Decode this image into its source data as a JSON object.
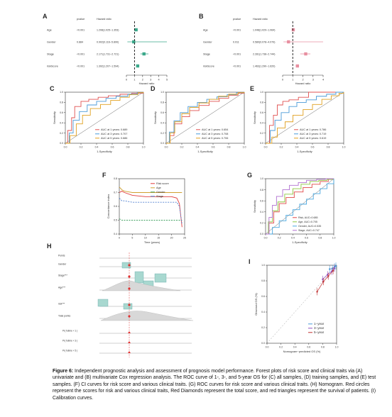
{
  "panels": {
    "a": {
      "label": "A",
      "header_pvalue": "pvalue",
      "header_hr": "Hazard ratio",
      "rows": [
        {
          "name": "Age",
          "pvalue": "<0.001",
          "hr": "1.208(1.025~1.353)",
          "est": 1.2,
          "lo": 1.03,
          "hi": 1.35
        },
        {
          "name": "Gender",
          "pvalue": "0.884",
          "hr": "0.902(0.116~5.890)",
          "est": 0.9,
          "lo": 0.12,
          "hi": 5.9
        },
        {
          "name": "Stage",
          "pvalue": "<0.001",
          "hr": "2.171(1.731~2.721)",
          "est": 2.17,
          "lo": 1.73,
          "hi": 2.72
        },
        {
          "name": "riskScore",
          "pvalue": "<0.001",
          "hr": "1.392(1.207~1.594)",
          "est": 1.39,
          "lo": 1.21,
          "hi": 1.59
        }
      ],
      "ticks": [
        "0",
        "1",
        "2",
        "3",
        "4",
        "5"
      ],
      "xlabel": "Hazard ratio",
      "color": "#3aa88a"
    },
    "b": {
      "label": "B",
      "header_pvalue": "pvalue",
      "header_hr": "Hazard ratio",
      "rows": [
        {
          "name": "Age",
          "pvalue": "<0.001",
          "hr": "1.048(1.029~1.064)",
          "est": 1.05,
          "lo": 1.03,
          "hi": 1.06
        },
        {
          "name": "Gender",
          "pvalue": "0.011",
          "hr": "0.580(0.078~4.079)",
          "est": 0.58,
          "lo": 0.08,
          "hi": 4.08
        },
        {
          "name": "Stage",
          "pvalue": "<0.001",
          "hr": "2.281(1.738~2.744)",
          "est": 2.28,
          "lo": 1.74,
          "hi": 2.74
        },
        {
          "name": "riskScore",
          "pvalue": "<0.001",
          "hr": "1.463(1.290~1.620)",
          "est": 1.46,
          "lo": 1.29,
          "hi": 1.62
        }
      ],
      "ticks": [
        "0",
        "1",
        "2",
        "3",
        "4"
      ],
      "xlabel": "Hazard ratio",
      "color": "#e88fa0"
    },
    "c": {
      "label": "C",
      "ylabel": "Sensitivity",
      "xlabel": "1-Specificity",
      "ticks": [
        "0.0",
        "0.2",
        "0.4",
        "0.6",
        "0.8",
        "1.0"
      ],
      "legend": [
        "AUC at 1 years: 0.689",
        "AUC at 3 years: 0.707",
        "AUC at 5 years: 0.686"
      ]
    },
    "d": {
      "label": "D",
      "ylabel": "Sensitivity",
      "xlabel": "1-Specificity",
      "ticks": [
        "0.0",
        "0.2",
        "0.4",
        "0.6",
        "0.8",
        "1.0"
      ],
      "legend": [
        "AUC at 1 years: 0.654",
        "AUC at 3 years: 0.708",
        "AUC at 5 years: 0.706"
      ]
    },
    "e": {
      "label": "E",
      "ylabel": "Sensitivity",
      "xlabel": "1-Specificity",
      "ticks": [
        "0.0",
        "0.2",
        "0.4",
        "0.6",
        "0.8",
        "1.0"
      ],
      "legend": [
        "AUC at 1 years: 0.786",
        "AUC at 3 years: 0.719",
        "AUC at 5 years: 0.619"
      ]
    },
    "f": {
      "label": "F",
      "ylabel": "Concordance index",
      "xlabel": "Time (years)",
      "yticks": [
        "0.4",
        "0.5",
        "0.6",
        "0.7",
        "0.8"
      ],
      "xticks": [
        "0",
        "5",
        "10",
        "15",
        "20",
        "25"
      ],
      "legend": [
        "Risk score",
        "Age",
        "Gender",
        "Stage"
      ]
    },
    "g": {
      "label": "G",
      "ylabel": "Sensitivity",
      "xlabel": "1-Specificity",
      "ticks": [
        "0.0",
        "0.2",
        "0.4",
        "0.6",
        "0.8",
        "1.0"
      ],
      "legend": [
        "Risk, AUC=0.685",
        "Age, AUC=0.705",
        "Gender, AUC=0.535",
        "Stage, AUC=0.747"
      ]
    },
    "h": {
      "label": "H",
      "rows": [
        "Points",
        "Gender",
        "Stage***",
        "Age***",
        "risk***",
        "Total points"
      ],
      "prob_rows": [
        "Pr( futime < 1 )",
        "Pr( futime < 3 )",
        "Pr( futime < 5 )"
      ]
    },
    "i": {
      "label": "I",
      "ylabel": "Observed OS (%)",
      "xlabel": "Nomogram−predicted OS (%)",
      "ticks": [
        "0.0",
        "0.2",
        "0.4",
        "0.6",
        "0.8",
        "1.0"
      ],
      "legend": [
        "1−year",
        "3−year",
        "5−year"
      ]
    }
  },
  "chart_data": [
    {
      "type": "scatter",
      "title": "",
      "xlabel": "Hazard ratio",
      "ylabel": "",
      "categories": [
        "Age",
        "Gender",
        "Stage",
        "riskScore"
      ],
      "values": [
        1.2,
        0.9,
        2.17,
        1.39
      ],
      "xlim": [
        0,
        5
      ]
    },
    {
      "type": "scatter",
      "title": "",
      "xlabel": "Hazard ratio",
      "ylabel": "",
      "categories": [
        "Age",
        "Gender",
        "Stage",
        "riskScore"
      ],
      "values": [
        1.05,
        0.58,
        2.28,
        1.46
      ],
      "xlim": [
        0,
        4
      ]
    },
    {
      "type": "line",
      "title": "",
      "xlabel": "1-Specificity",
      "ylabel": "Sensitivity",
      "xlim": [
        0,
        1
      ],
      "ylim": [
        0,
        1
      ],
      "series": [
        {
          "name": "AUC at 1 years: 0.689",
          "x": [
            0,
            0.03,
            0.08,
            0.12,
            0.2,
            0.3,
            0.42,
            0.55,
            0.7,
            0.85,
            1
          ],
          "y": [
            0,
            0.25,
            0.5,
            0.72,
            0.82,
            0.86,
            0.9,
            0.93,
            0.96,
            0.98,
            1
          ]
        },
        {
          "name": "AUC at 3 years: 0.707",
          "x": [
            0,
            0.05,
            0.1,
            0.18,
            0.28,
            0.4,
            0.52,
            0.65,
            0.8,
            0.92,
            1
          ],
          "y": [
            0,
            0.2,
            0.45,
            0.62,
            0.75,
            0.82,
            0.88,
            0.92,
            0.96,
            0.99,
            1
          ]
        },
        {
          "name": "AUC at 5 years: 0.686",
          "x": [
            0,
            0.06,
            0.14,
            0.22,
            0.32,
            0.45,
            0.58,
            0.7,
            0.82,
            0.93,
            1
          ],
          "y": [
            0,
            0.15,
            0.38,
            0.55,
            0.68,
            0.76,
            0.84,
            0.9,
            0.95,
            0.99,
            1
          ]
        }
      ]
    },
    {
      "type": "line",
      "title": "",
      "xlabel": "1-Specificity",
      "ylabel": "Sensitivity",
      "xlim": [
        0,
        1
      ],
      "ylim": [
        0,
        1
      ],
      "series": [
        {
          "name": "AUC at 1 years: 0.654",
          "x": [
            0,
            0.05,
            0.1,
            0.2,
            0.3,
            0.42,
            0.55,
            0.68,
            0.8,
            0.92,
            1
          ],
          "y": [
            0,
            0.15,
            0.38,
            0.52,
            0.64,
            0.74,
            0.82,
            0.88,
            0.94,
            0.98,
            1
          ]
        },
        {
          "name": "AUC at 3 years: 0.708",
          "x": [
            0,
            0.04,
            0.1,
            0.18,
            0.28,
            0.4,
            0.52,
            0.65,
            0.78,
            0.9,
            1
          ],
          "y": [
            0,
            0.22,
            0.44,
            0.6,
            0.72,
            0.8,
            0.86,
            0.91,
            0.95,
            0.99,
            1
          ]
        },
        {
          "name": "AUC at 5 years: 0.706",
          "x": [
            0,
            0.05,
            0.11,
            0.2,
            0.3,
            0.42,
            0.55,
            0.67,
            0.8,
            0.92,
            1
          ],
          "y": [
            0,
            0.2,
            0.42,
            0.58,
            0.7,
            0.79,
            0.86,
            0.92,
            0.96,
            0.99,
            1
          ]
        }
      ]
    },
    {
      "type": "line",
      "title": "",
      "xlabel": "1-Specificity",
      "ylabel": "Sensitivity",
      "xlim": [
        0,
        1
      ],
      "ylim": [
        0,
        1
      ],
      "series": [
        {
          "name": "AUC at 1 years: 0.786",
          "x": [
            0,
            0.05,
            0.1,
            0.15,
            0.22,
            0.3,
            0.42,
            0.55,
            0.7,
            0.85,
            1
          ],
          "y": [
            0,
            0.35,
            0.55,
            0.75,
            0.82,
            0.85,
            0.9,
            1,
            1,
            1,
            1
          ]
        },
        {
          "name": "AUC at 3 years: 0.719",
          "x": [
            0,
            0.06,
            0.12,
            0.2,
            0.3,
            0.4,
            0.52,
            0.65,
            0.78,
            0.9,
            1
          ],
          "y": [
            0,
            0.25,
            0.45,
            0.6,
            0.72,
            0.8,
            0.85,
            0.92,
            0.96,
            1,
            1
          ]
        },
        {
          "name": "AUC at 5 years: 0.619",
          "x": [
            0,
            0.08,
            0.15,
            0.25,
            0.35,
            0.48,
            0.6,
            0.72,
            0.84,
            0.94,
            1
          ],
          "y": [
            0,
            0.12,
            0.3,
            0.42,
            0.55,
            0.66,
            0.76,
            0.86,
            0.93,
            0.98,
            1
          ]
        }
      ]
    },
    {
      "type": "line",
      "title": "",
      "xlabel": "Time (years)",
      "ylabel": "Concordance index",
      "xlim": [
        0,
        25
      ],
      "ylim": [
        0.4,
        0.8
      ],
      "series": [
        {
          "name": "Risk score",
          "x": [
            0,
            1,
            2,
            5,
            10,
            15,
            20,
            22,
            23,
            24
          ],
          "y": [
            0.7,
            0.71,
            0.7,
            0.68,
            0.67,
            0.67,
            0.67,
            0.66,
            0.62,
            0.45
          ]
        },
        {
          "name": "Age",
          "x": [
            0,
            1,
            2,
            5,
            10,
            15,
            20,
            22,
            23,
            24
          ],
          "y": [
            0.74,
            0.72,
            0.71,
            0.7,
            0.7,
            0.7,
            0.7,
            0.7,
            0.7,
            0.7
          ]
        },
        {
          "name": "Gender",
          "x": [
            0,
            1,
            2,
            5,
            10,
            15,
            20,
            22,
            23,
            24
          ],
          "y": [
            0.51,
            0.5,
            0.5,
            0.5,
            0.5,
            0.5,
            0.5,
            0.5,
            0.5,
            0.5
          ]
        },
        {
          "name": "Stage",
          "x": [
            0,
            1,
            2,
            5,
            10,
            15,
            20,
            22,
            23,
            24
          ],
          "y": [
            0.66,
            0.64,
            0.64,
            0.63,
            0.63,
            0.63,
            0.63,
            0.63,
            0.6,
            0.47
          ]
        }
      ]
    },
    {
      "type": "line",
      "title": "",
      "xlabel": "1-Specificity",
      "ylabel": "Sensitivity",
      "xlim": [
        0,
        1
      ],
      "ylim": [
        0,
        1
      ],
      "series": [
        {
          "name": "Risk, AUC=0.685",
          "x": [
            0,
            0.05,
            0.12,
            0.2,
            0.3,
            0.42,
            0.55,
            0.68,
            0.8,
            0.92,
            1
          ],
          "y": [
            0,
            0.2,
            0.4,
            0.55,
            0.66,
            0.76,
            0.84,
            0.9,
            0.95,
            0.99,
            1
          ]
        },
        {
          "name": "Age, AUC=0.705",
          "x": [
            0,
            0.04,
            0.1,
            0.18,
            0.28,
            0.4,
            0.52,
            0.65,
            0.78,
            0.9,
            1
          ],
          "y": [
            0,
            0.22,
            0.42,
            0.58,
            0.72,
            0.82,
            0.9,
            0.95,
            0.97,
            0.99,
            1
          ]
        },
        {
          "name": "Gender, AUC=0.535",
          "x": [
            0,
            0.1,
            0.2,
            0.3,
            0.4,
            0.5,
            0.6,
            0.7,
            0.8,
            0.9,
            1
          ],
          "y": [
            0,
            0.12,
            0.24,
            0.34,
            0.44,
            0.54,
            0.63,
            0.73,
            0.82,
            0.91,
            1
          ]
        },
        {
          "name": "Stage, AUC=0.747",
          "x": [
            0,
            0.05,
            0.1,
            0.16,
            0.25,
            0.35,
            0.48,
            0.6,
            0.75,
            0.88,
            1
          ],
          "y": [
            0,
            0.3,
            0.52,
            0.68,
            0.8,
            0.88,
            0.93,
            0.97,
            0.99,
            1,
            1
          ]
        }
      ]
    },
    {
      "type": "scatter",
      "title": "",
      "xlabel": "Nomogram−predicted OS (%)",
      "ylabel": "Observed OS (%)",
      "xlim": [
        0,
        1
      ],
      "ylim": [
        0,
        1
      ],
      "series": [
        {
          "name": "1−year",
          "x": [
            0.9,
            0.94,
            0.97,
            0.99
          ],
          "y": [
            0.95,
            0.96,
            0.98,
            0.99
          ]
        },
        {
          "name": "3−year",
          "x": [
            0.8,
            0.87,
            0.93,
            0.97
          ],
          "y": [
            0.82,
            0.88,
            0.92,
            0.96
          ]
        },
        {
          "name": "5−year",
          "x": [
            0.72,
            0.81,
            0.88,
            0.95
          ],
          "y": [
            0.66,
            0.79,
            0.86,
            0.93
          ]
        }
      ]
    }
  ],
  "caption": {
    "label": "Figure 6:",
    "text": " Independent prognostic analysis and assessment of prognosis model performance. Forest plots of risk score and clinical traits via (A) univariate and (B) multivariate Cox regression analysis. The ROC curve of 1-, 3-, and 5-year OS for (C) all samples, (D) training samples, and (E) test samples. (F) CI curves for risk score and various clinical traits. (G) ROC curves for risk score and various clinical traits. (H) Nomogram. Red circles represent the scores for risk and various clinical traits, Red Diamonds represent the total score, and red triangles represent the survival of patients. (I) Calibration curves."
  }
}
